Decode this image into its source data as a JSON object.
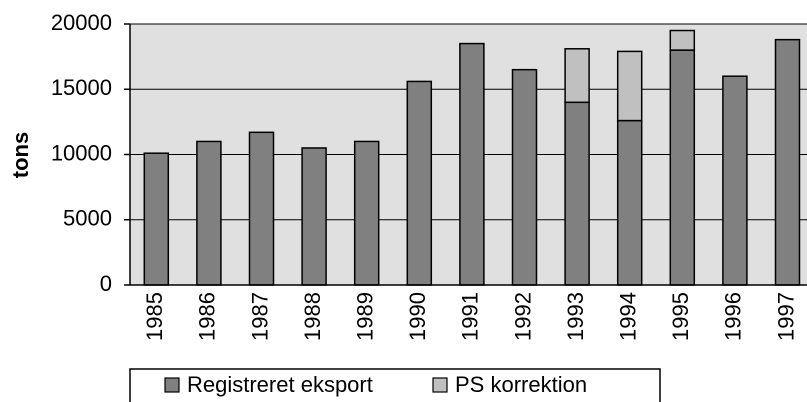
{
  "chart_data": {
    "type": "stacked_bar",
    "ylabel": "tons",
    "categories": [
      "1985",
      "1986",
      "1987",
      "1988",
      "1989",
      "1990",
      "1991",
      "1992",
      "1993",
      "1994",
      "1995",
      "1996",
      "1997"
    ],
    "series": [
      {
        "name": "Registreret eksport",
        "color": "#808080",
        "values": [
          10100,
          11000,
          11700,
          10500,
          11000,
          15600,
          18500,
          16500,
          14000,
          12600,
          18000,
          16000,
          18800
        ]
      },
      {
        "name": "PS korrektion",
        "color": "#c0c0c0",
        "values": [
          null,
          null,
          null,
          null,
          null,
          null,
          null,
          null,
          4100,
          5300,
          1500,
          null,
          null
        ]
      }
    ],
    "ylim": [
      0,
      20000
    ],
    "yticks": [
      0,
      5000,
      10000,
      15000,
      20000
    ],
    "grid": true
  }
}
